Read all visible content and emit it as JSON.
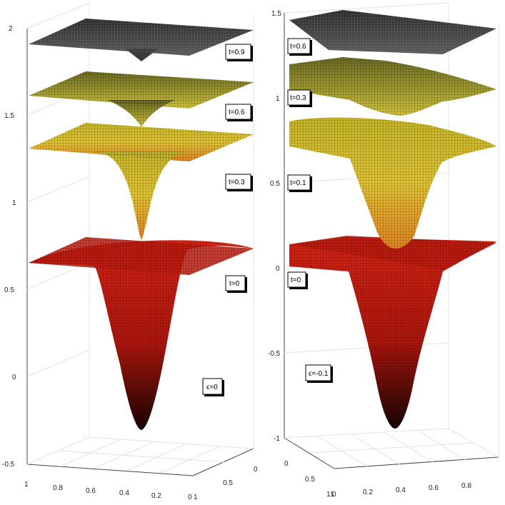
{
  "chart_data": [
    {
      "type": "surface",
      "z_ticks": [
        "2",
        "1.5",
        "1",
        "0.5",
        "0",
        "-0.5"
      ],
      "x_ticks": [
        "1",
        "0.8",
        "0.6",
        "0.4",
        "0.2",
        "0"
      ],
      "y_ticks": [
        "1",
        "0.5",
        "0"
      ],
      "zlim": [
        -0.5,
        2
      ],
      "xlim": [
        0,
        1
      ],
      "ylim": [
        0,
        1
      ],
      "grid": "on",
      "annotations": [
        "t=0.9",
        "t=0.6",
        "t=0.3",
        "t=0",
        "ϵ=0"
      ],
      "surfaces": [
        {
          "label": "t=0",
          "z_plane": 0.65,
          "z_min": -0.3,
          "color": "#d81f10"
        },
        {
          "label": "t=0.3",
          "z_plane": 1.3,
          "z_min": 0.78,
          "color": "#d9c71c"
        },
        {
          "label": "t=0.6",
          "z_plane": 1.6,
          "z_min": 1.43,
          "color": "#8a8a22"
        },
        {
          "label": "t=0.9",
          "z_plane": 1.9,
          "z_min": 1.82,
          "color": "#3b3b3b"
        }
      ]
    },
    {
      "type": "surface",
      "z_ticks": [
        "1.5",
        "1",
        "0.5",
        "0",
        "-0.5",
        "-1"
      ],
      "x_ticks": [
        "0",
        "0.2",
        "0.4",
        "0.6",
        "0.8"
      ],
      "x_extra_tick": "1",
      "y_ticks": [
        "0",
        "0.5",
        "1"
      ],
      "zlim": [
        -1,
        1.5
      ],
      "xlim": [
        0,
        1
      ],
      "ylim": [
        0,
        1
      ],
      "grid": "on",
      "annotations": [
        "t=0.6",
        "t=0.3",
        "t=0.1",
        "t=0",
        "ϵ=-0.1"
      ],
      "surfaces": [
        {
          "label": "t=0",
          "z_plane": 0.0,
          "z_min": -0.95,
          "color": "#d81f10"
        },
        {
          "label": "t=0.1",
          "z_plane": 0.7,
          "z_min": -0.15,
          "color": "#d9c71c"
        },
        {
          "label": "t=0.3",
          "z_plane": 1.15,
          "z_min": 0.9,
          "color": "#8a8a22"
        },
        {
          "label": "t=0.6",
          "z_plane": 1.45,
          "z_min": 1.38,
          "color": "#3b3b3b"
        }
      ]
    }
  ]
}
